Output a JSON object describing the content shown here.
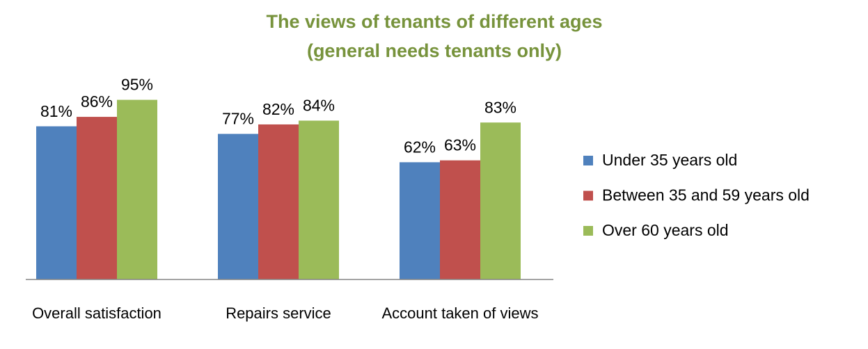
{
  "chart_data": {
    "type": "bar",
    "title": "The views of tenants of different ages",
    "subtitle": "(general needs tenants only)",
    "title_color": "#77933c",
    "categories": [
      "Overall satisfaction",
      "Repairs service",
      "Account taken of views"
    ],
    "series": [
      {
        "name": "Under 35 years old",
        "color": "#4f81bd",
        "values": [
          81,
          77,
          62
        ],
        "value_labels": [
          "81%",
          "77%",
          "62%"
        ]
      },
      {
        "name": "Between 35 and 59 years old",
        "color": "#c0504d",
        "values": [
          86,
          82,
          63
        ],
        "value_labels": [
          "86%",
          "82%",
          "63%"
        ]
      },
      {
        "name": "Over 60 years old",
        "color": "#9bbb59",
        "values": [
          95,
          84,
          83
        ],
        "value_labels": [
          "95%",
          "84%",
          "83%"
        ]
      }
    ],
    "ylim": [
      0,
      100
    ],
    "legend": "right"
  }
}
